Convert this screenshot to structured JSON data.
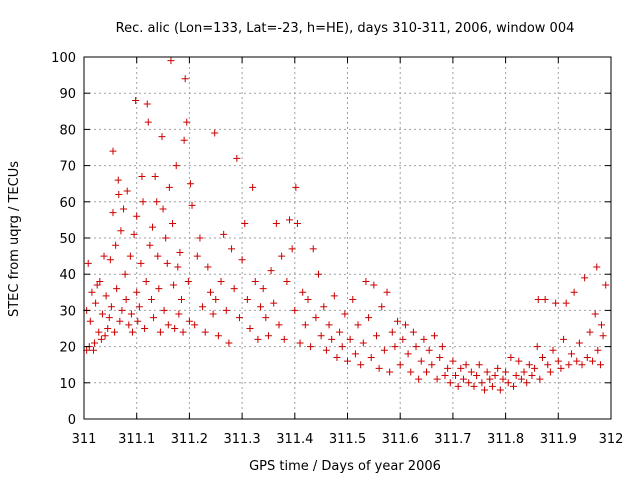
{
  "chart_data": {
    "type": "scatter",
    "title": "Rec. alic (Lon=133, Lat=-23, h=HE), days 310-311, 2006, window 004",
    "xlabel": "GPS time / Days of year 2006",
    "ylabel": "STEC from uqrg / TECUs",
    "xlim": [
      311,
      312
    ],
    "ylim": [
      0,
      100
    ],
    "xticks": [
      "311",
      "311.1",
      "311.2",
      "311.3",
      "311.4",
      "311.5",
      "311.6",
      "311.7",
      "311.8",
      "311.9",
      "312"
    ],
    "yticks": [
      "0",
      "10",
      "20",
      "30",
      "40",
      "50",
      "60",
      "70",
      "80",
      "90",
      "100"
    ],
    "grid": true,
    "marker": "+",
    "color": "#cc0000",
    "series": [
      {
        "name": "",
        "points": [
          [
            311.005,
            19
          ],
          [
            311.005,
            30
          ],
          [
            311.008,
            43
          ],
          [
            311.01,
            20
          ],
          [
            311.012,
            27
          ],
          [
            311.015,
            35
          ],
          [
            311.018,
            19
          ],
          [
            311.02,
            21
          ],
          [
            311.022,
            32
          ],
          [
            311.025,
            37
          ],
          [
            311.028,
            24
          ],
          [
            311.03,
            38
          ],
          [
            311.033,
            22
          ],
          [
            311.035,
            29
          ],
          [
            311.038,
            45
          ],
          [
            311.04,
            23
          ],
          [
            311.042,
            34
          ],
          [
            311.045,
            25
          ],
          [
            311.048,
            28
          ],
          [
            311.05,
            44
          ],
          [
            311.052,
            31
          ],
          [
            311.055,
            57
          ],
          [
            311.055,
            74
          ],
          [
            311.058,
            24
          ],
          [
            311.06,
            48
          ],
          [
            311.062,
            36
          ],
          [
            311.065,
            66
          ],
          [
            311.066,
            62
          ],
          [
            311.068,
            27
          ],
          [
            311.07,
            52
          ],
          [
            311.072,
            30
          ],
          [
            311.075,
            58
          ],
          [
            311.078,
            40
          ],
          [
            311.08,
            33
          ],
          [
            311.082,
            63
          ],
          [
            311.085,
            26
          ],
          [
            311.088,
            45
          ],
          [
            311.09,
            29
          ],
          [
            311.092,
            24
          ],
          [
            311.095,
            51
          ],
          [
            311.098,
            88
          ],
          [
            311.1,
            35
          ],
          [
            311.1,
            56
          ],
          [
            311.102,
            27
          ],
          [
            311.105,
            31
          ],
          [
            311.108,
            43
          ],
          [
            311.11,
            67
          ],
          [
            311.112,
            60
          ],
          [
            311.115,
            25
          ],
          [
            311.118,
            38
          ],
          [
            311.12,
            87
          ],
          [
            311.122,
            82
          ],
          [
            311.125,
            48
          ],
          [
            311.128,
            33
          ],
          [
            311.13,
            53
          ],
          [
            311.132,
            28
          ],
          [
            311.135,
            67
          ],
          [
            311.138,
            60
          ],
          [
            311.14,
            45
          ],
          [
            311.142,
            36
          ],
          [
            311.145,
            24
          ],
          [
            311.148,
            78
          ],
          [
            311.15,
            58
          ],
          [
            311.152,
            30
          ],
          [
            311.155,
            50
          ],
          [
            311.158,
            43
          ],
          [
            311.16,
            26
          ],
          [
            311.162,
            64
          ],
          [
            311.165,
            99
          ],
          [
            311.168,
            54
          ],
          [
            311.17,
            37
          ],
          [
            311.172,
            25
          ],
          [
            311.175,
            70
          ],
          [
            311.178,
            42
          ],
          [
            311.18,
            29
          ],
          [
            311.182,
            46
          ],
          [
            311.185,
            33
          ],
          [
            311.188,
            24
          ],
          [
            311.19,
            77
          ],
          [
            311.192,
            94
          ],
          [
            311.195,
            82
          ],
          [
            311.198,
            38
          ],
          [
            311.2,
            27
          ],
          [
            311.202,
            65
          ],
          [
            311.205,
            59
          ],
          [
            311.21,
            26
          ],
          [
            311.215,
            45
          ],
          [
            311.22,
            50
          ],
          [
            311.225,
            31
          ],
          [
            311.23,
            24
          ],
          [
            311.235,
            42
          ],
          [
            311.24,
            35
          ],
          [
            311.245,
            29
          ],
          [
            311.248,
            79
          ],
          [
            311.25,
            33
          ],
          [
            311.255,
            23
          ],
          [
            311.26,
            38
          ],
          [
            311.265,
            51
          ],
          [
            311.27,
            30
          ],
          [
            311.275,
            21
          ],
          [
            311.28,
            47
          ],
          [
            311.285,
            36
          ],
          [
            311.29,
            72
          ],
          [
            311.295,
            28
          ],
          [
            311.3,
            44
          ],
          [
            311.305,
            54
          ],
          [
            311.31,
            33
          ],
          [
            311.315,
            25
          ],
          [
            311.32,
            64
          ],
          [
            311.325,
            38
          ],
          [
            311.33,
            22
          ],
          [
            311.335,
            31
          ],
          [
            311.34,
            36
          ],
          [
            311.345,
            28
          ],
          [
            311.35,
            23
          ],
          [
            311.355,
            41
          ],
          [
            311.36,
            32
          ],
          [
            311.365,
            54
          ],
          [
            311.37,
            26
          ],
          [
            311.375,
            45
          ],
          [
            311.38,
            22
          ],
          [
            311.385,
            38
          ],
          [
            311.39,
            55
          ],
          [
            311.395,
            47
          ],
          [
            311.4,
            30
          ],
          [
            311.402,
            64
          ],
          [
            311.405,
            54
          ],
          [
            311.41,
            21
          ],
          [
            311.415,
            35
          ],
          [
            311.42,
            26
          ],
          [
            311.425,
            33
          ],
          [
            311.43,
            20
          ],
          [
            311.435,
            47
          ],
          [
            311.44,
            28
          ],
          [
            311.445,
            40
          ],
          [
            311.45,
            23
          ],
          [
            311.455,
            31
          ],
          [
            311.46,
            19
          ],
          [
            311.465,
            26
          ],
          [
            311.47,
            22
          ],
          [
            311.475,
            34
          ],
          [
            311.48,
            17
          ],
          [
            311.485,
            24
          ],
          [
            311.49,
            20
          ],
          [
            311.495,
            29
          ],
          [
            311.5,
            16
          ],
          [
            311.505,
            22
          ],
          [
            311.51,
            33
          ],
          [
            311.515,
            18
          ],
          [
            311.52,
            26
          ],
          [
            311.525,
            15
          ],
          [
            311.53,
            21
          ],
          [
            311.535,
            38
          ],
          [
            311.54,
            28
          ],
          [
            311.545,
            17
          ],
          [
            311.55,
            37
          ],
          [
            311.555,
            23
          ],
          [
            311.56,
            14
          ],
          [
            311.565,
            31
          ],
          [
            311.57,
            19
          ],
          [
            311.575,
            35
          ],
          [
            311.58,
            13
          ],
          [
            311.585,
            24
          ],
          [
            311.59,
            20
          ],
          [
            311.595,
            27
          ],
          [
            311.6,
            15
          ],
          [
            311.605,
            22
          ],
          [
            311.61,
            26
          ],
          [
            311.615,
            18
          ],
          [
            311.62,
            13
          ],
          [
            311.625,
            24
          ],
          [
            311.63,
            20
          ],
          [
            311.635,
            11
          ],
          [
            311.64,
            16
          ],
          [
            311.645,
            22
          ],
          [
            311.65,
            13
          ],
          [
            311.655,
            19
          ],
          [
            311.66,
            15
          ],
          [
            311.665,
            23
          ],
          [
            311.67,
            11
          ],
          [
            311.675,
            17
          ],
          [
            311.68,
            20
          ],
          [
            311.685,
            12
          ],
          [
            311.69,
            14
          ],
          [
            311.695,
            10
          ],
          [
            311.7,
            16
          ],
          [
            311.705,
            12
          ],
          [
            311.71,
            9
          ],
          [
            311.715,
            14
          ],
          [
            311.72,
            11
          ],
          [
            311.725,
            15
          ],
          [
            311.73,
            10
          ],
          [
            311.735,
            13
          ],
          [
            311.74,
            9
          ],
          [
            311.745,
            12
          ],
          [
            311.75,
            15
          ],
          [
            311.755,
            10
          ],
          [
            311.76,
            8
          ],
          [
            311.765,
            13
          ],
          [
            311.77,
            11
          ],
          [
            311.775,
            9
          ],
          [
            311.78,
            12
          ],
          [
            311.785,
            14
          ],
          [
            311.79,
            8
          ],
          [
            311.795,
            11
          ],
          [
            311.8,
            13
          ],
          [
            311.805,
            10
          ],
          [
            311.81,
            17
          ],
          [
            311.815,
            9
          ],
          [
            311.82,
            12
          ],
          [
            311.825,
            16
          ],
          [
            311.83,
            11
          ],
          [
            311.835,
            13
          ],
          [
            311.84,
            10
          ],
          [
            311.845,
            15
          ],
          [
            311.85,
            12
          ],
          [
            311.855,
            14
          ],
          [
            311.86,
            20
          ],
          [
            311.862,
            33
          ],
          [
            311.865,
            11
          ],
          [
            311.87,
            17
          ],
          [
            311.875,
            33
          ],
          [
            311.88,
            15
          ],
          [
            311.885,
            13
          ],
          [
            311.89,
            19
          ],
          [
            311.895,
            32
          ],
          [
            311.9,
            16
          ],
          [
            311.905,
            14
          ],
          [
            311.91,
            22
          ],
          [
            311.915,
            32
          ],
          [
            311.92,
            15
          ],
          [
            311.925,
            18
          ],
          [
            311.93,
            35
          ],
          [
            311.935,
            16
          ],
          [
            311.94,
            21
          ],
          [
            311.945,
            15
          ],
          [
            311.95,
            39
          ],
          [
            311.955,
            17
          ],
          [
            311.96,
            24
          ],
          [
            311.965,
            16
          ],
          [
            311.97,
            29
          ],
          [
            311.973,
            42
          ],
          [
            311.975,
            19
          ],
          [
            311.98,
            15
          ],
          [
            311.982,
            26
          ],
          [
            311.985,
            23
          ],
          [
            311.99,
            37
          ]
        ]
      }
    ]
  }
}
